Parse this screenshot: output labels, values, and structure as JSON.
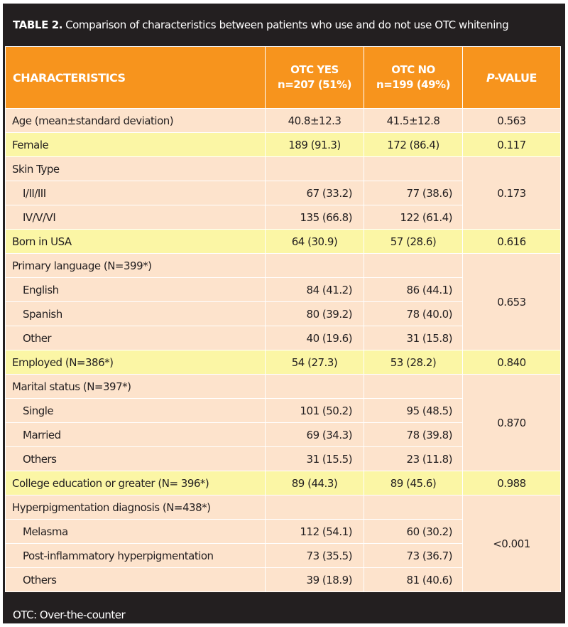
{
  "title": {
    "prefix": "TABLE 2.",
    "text": "Comparison of characteristics between patients who use and do not use OTC whitening"
  },
  "header": {
    "characteristics": "CHARACTERISTICS",
    "otc_yes": "OTC YES",
    "otc_yes_n": "n=207 (51%)",
    "otc_no": "OTC NO",
    "otc_no_n": "n=199 (49%)",
    "p_italic": "P",
    "p_rest": "-VALUE"
  },
  "rows": {
    "age": {
      "label": "Age (mean±standard deviation)",
      "yes": "40.8±12.3",
      "no": "41.5±12.8",
      "p": "0.563"
    },
    "female": {
      "label": "Female",
      "yes": "189 (91.3)",
      "no": "172 (86.4)",
      "p": "0.117"
    },
    "skin": {
      "label": "Skin Type",
      "p": "0.173",
      "sub": [
        {
          "label": "I/II/III",
          "yes": "67 (33.2)",
          "no": "77 (38.6)"
        },
        {
          "label": "IV/V/VI",
          "yes": "135 (66.8)",
          "no": "122 (61.4)"
        }
      ]
    },
    "born": {
      "label": "Born in USA",
      "yes": "64 (30.9)",
      "no": "57 (28.6)",
      "p": "0.616"
    },
    "language": {
      "label": "Primary language (N=399*)",
      "p": "0.653",
      "sub": [
        {
          "label": "English",
          "yes": "84 (41.2)",
          "no": "86 (44.1)"
        },
        {
          "label": "Spanish",
          "yes": "80 (39.2)",
          "no": "78 (40.0)"
        },
        {
          "label": "Other",
          "yes": "40 (19.6)",
          "no": "31 (15.8)"
        }
      ]
    },
    "employed": {
      "label": "Employed (N=386*)",
      "yes": "54 (27.3)",
      "no": "53 (28.2)",
      "p": "0.840"
    },
    "marital": {
      "label": "Marital status (N=397*)",
      "p": "0.870",
      "sub": [
        {
          "label": "Single",
          "yes": "101 (50.2)",
          "no": "95 (48.5)"
        },
        {
          "label": "Married",
          "yes": "69 (34.3)",
          "no": "78 (39.8)"
        },
        {
          "label": "Others",
          "yes": "31 (15.5)",
          "no": "23 (11.8)"
        }
      ]
    },
    "college": {
      "label": "College education or greater (N= 396*)",
      "yes": "89 (44.3)",
      "no": "89 (45.6)",
      "p": "0.988"
    },
    "hyper": {
      "label": "Hyperpigmentation diagnosis (N=438*)",
      "p": "<0.001",
      "sub": [
        {
          "label": "Melasma",
          "yes": "112 (54.1)",
          "no": "60 (30.2)"
        },
        {
          "label": "Post-inflammatory hyperpigmentation",
          "yes": "73 (35.5)",
          "no": "73 (36.7)"
        },
        {
          "label": "Others",
          "yes": "39 (18.9)",
          "no": "81 (40.6)"
        }
      ]
    }
  },
  "footnote": "OTC: Over-the-counter",
  "colors": {
    "frame": "#231f20",
    "header": "#f7941d",
    "peach": "#fde3cc",
    "yellow": "#fbf6a5"
  }
}
